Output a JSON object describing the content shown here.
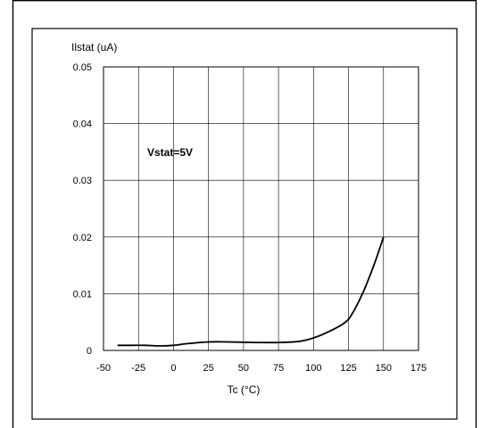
{
  "chart_data": {
    "type": "line",
    "title": "",
    "ylabel": "Ilstat (uA)",
    "xlabel": "Tc (°C)",
    "annotation": "Vstat=5V",
    "xlim": [
      -50,
      175
    ],
    "ylim": [
      0,
      0.05
    ],
    "xticks": [
      "-50",
      "-25",
      "0",
      "25",
      "50",
      "75",
      "100",
      "125",
      "150",
      "175"
    ],
    "yticks": [
      "0",
      "0.01",
      "0.02",
      "0.03",
      "0.04",
      "0.05"
    ],
    "grid": true,
    "series": [
      {
        "x": [
          -40,
          -30,
          -20,
          -10,
          0,
          10,
          25,
          40,
          60,
          75,
          90,
          100,
          110,
          120,
          125,
          130,
          135,
          140,
          145,
          150
        ],
        "y": [
          0.0009,
          0.0009,
          0.0009,
          0.0008,
          0.0009,
          0.0012,
          0.0015,
          0.0015,
          0.0014,
          0.0014,
          0.0016,
          0.0022,
          0.0032,
          0.0045,
          0.0055,
          0.0075,
          0.01,
          0.013,
          0.0163,
          0.02
        ],
        "color": "#000000"
      }
    ]
  }
}
